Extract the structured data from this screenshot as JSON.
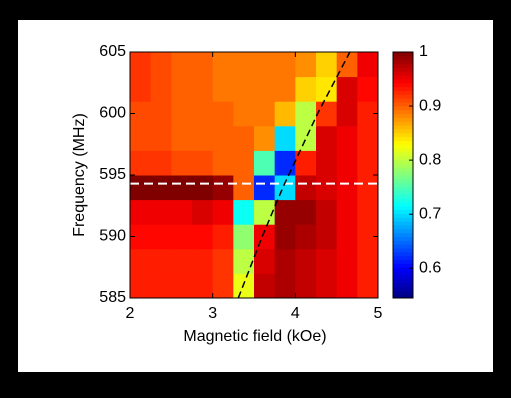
{
  "chart_data": {
    "type": "heatmap",
    "x_label": "Magnetic field (kOe)",
    "y_label": "Frequency (MHz)",
    "x": [
      2.125,
      2.375,
      2.625,
      2.875,
      3.125,
      3.375,
      3.625,
      3.875,
      4.125,
      4.375,
      4.625,
      4.875
    ],
    "y": [
      586,
      588,
      590,
      592,
      594,
      596,
      598,
      600,
      602,
      604
    ],
    "z": [
      [
        0.93,
        0.93,
        0.93,
        0.93,
        0.92,
        0.82,
        0.97,
        0.98,
        0.97,
        0.96,
        0.95,
        0.93
      ],
      [
        0.93,
        0.93,
        0.93,
        0.93,
        0.92,
        0.8,
        0.96,
        0.98,
        0.97,
        0.96,
        0.95,
        0.93
      ],
      [
        0.94,
        0.94,
        0.94,
        0.94,
        0.93,
        0.78,
        0.95,
        0.99,
        0.98,
        0.97,
        0.95,
        0.93
      ],
      [
        0.95,
        0.95,
        0.95,
        0.96,
        0.95,
        0.72,
        0.8,
        0.99,
        0.99,
        0.97,
        0.95,
        0.93
      ],
      [
        1.0,
        1.0,
        1.0,
        1.0,
        0.99,
        0.9,
        0.62,
        0.7,
        0.97,
        0.96,
        0.95,
        0.93
      ],
      [
        0.92,
        0.92,
        0.91,
        0.91,
        0.9,
        0.9,
        0.75,
        0.62,
        0.93,
        0.96,
        0.95,
        0.93
      ],
      [
        0.91,
        0.91,
        0.9,
        0.9,
        0.9,
        0.9,
        0.88,
        0.7,
        0.8,
        0.96,
        0.95,
        0.93
      ],
      [
        0.91,
        0.91,
        0.9,
        0.9,
        0.9,
        0.89,
        0.89,
        0.86,
        0.8,
        0.92,
        0.96,
        0.93
      ],
      [
        0.92,
        0.91,
        0.9,
        0.9,
        0.89,
        0.89,
        0.89,
        0.89,
        0.85,
        0.84,
        0.96,
        0.94
      ],
      [
        0.92,
        0.91,
        0.9,
        0.9,
        0.89,
        0.89,
        0.89,
        0.89,
        0.88,
        0.85,
        0.9,
        0.95
      ]
    ],
    "colormap": "jet",
    "clim": [
      0.545,
      1
    ],
    "colorbar_ticks": [
      0.6,
      0.7,
      0.8,
      0.9,
      1
    ],
    "xlim": [
      2,
      5
    ],
    "xticks": [
      2,
      3,
      4,
      5
    ],
    "ylim": [
      585,
      605
    ],
    "yticks": [
      585,
      590,
      595,
      600,
      605
    ],
    "hline": {
      "y": 594.3,
      "color": "#ffffff"
    },
    "curve": {
      "x": [
        3.31,
        3.6,
        3.85,
        4.27,
        4.66
      ],
      "y": [
        585,
        590,
        594,
        600,
        605
      ],
      "color": "#000000"
    }
  }
}
